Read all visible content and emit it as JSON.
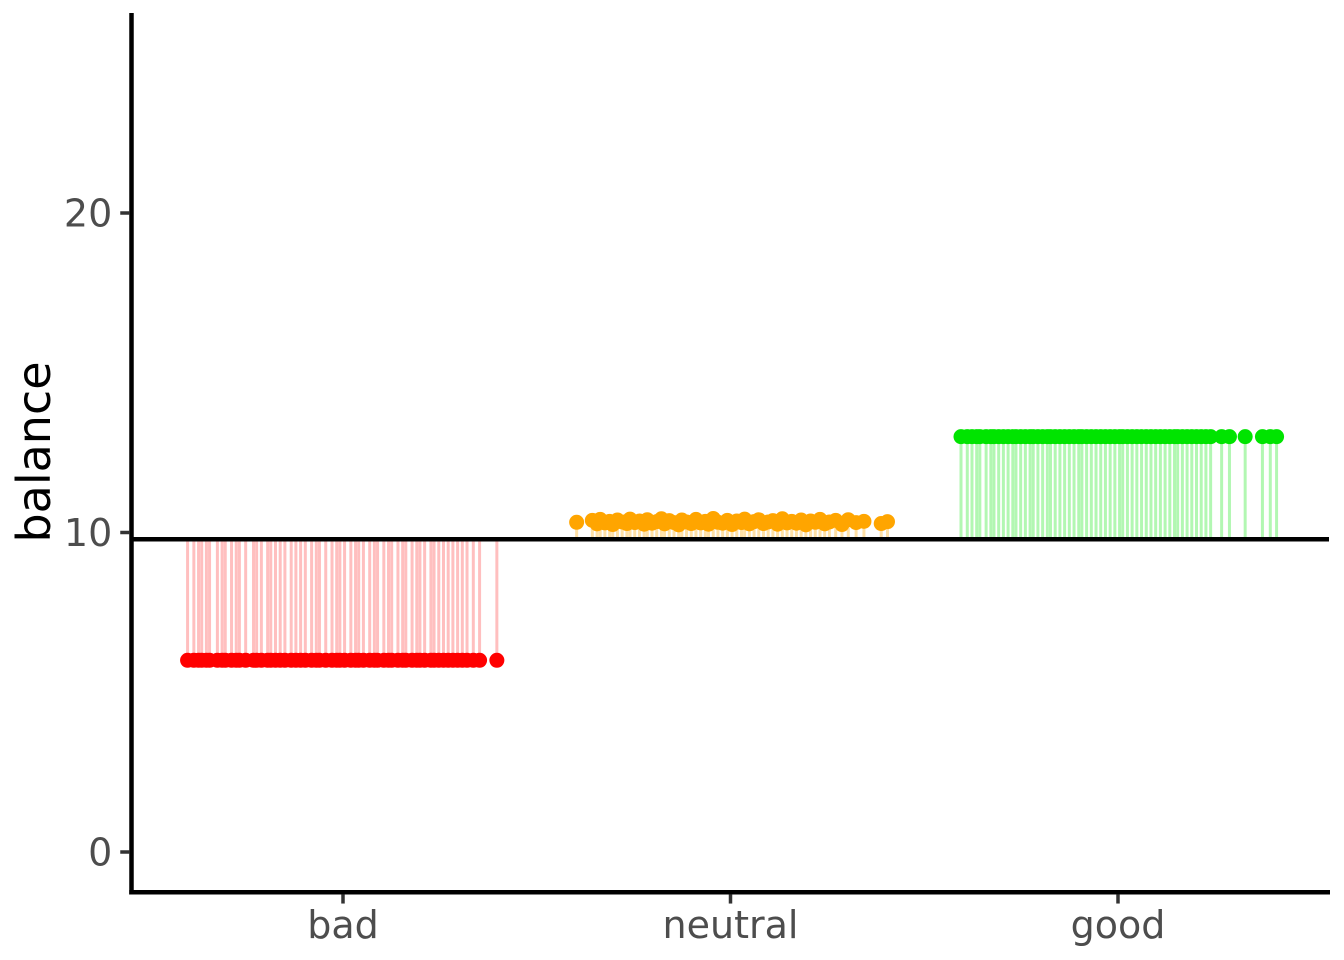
{
  "chart_data": {
    "type": "scatter",
    "title": "",
    "xlabel": "",
    "ylabel": "balance",
    "categories": [
      "bad",
      "neutral",
      "good"
    ],
    "yticks": [
      0,
      10,
      20
    ],
    "ylim": [
      -1.3,
      26.3
    ],
    "baseline": 9.79,
    "grid": false,
    "legend": false,
    "description": "Jittered end-balance points per outcome group, each connected to the starting-balance line (~10) by a translucent vertical segment. bad ends at 6, neutral at ~10.3, good at 13.",
    "axis_colors": {
      "axis_line": "#000000",
      "tick_mark": "#333333",
      "tick_text": "#4d4d4d",
      "title_text": "#000000"
    },
    "series": [
      {
        "name": "bad",
        "point_color": "#ff0000",
        "line_color": "#ff0000",
        "line_alpha": 0.25,
        "end_value": 6,
        "jitter": [
          -0.99,
          -0.95,
          -0.92,
          -0.9,
          -0.87,
          -0.85,
          -0.8,
          -0.77,
          -0.75,
          -0.71,
          -0.68,
          -0.66,
          -0.62,
          -0.57,
          -0.55,
          -0.52,
          -0.48,
          -0.46,
          -0.43,
          -0.4,
          -0.37,
          -0.33,
          -0.3,
          -0.27,
          -0.24,
          -0.2,
          -0.17,
          -0.15,
          -0.11,
          -0.07,
          -0.04,
          -0.02,
          0.01,
          0.05,
          0.08,
          0.1,
          0.13,
          0.17,
          0.2,
          0.22,
          0.26,
          0.29,
          0.31,
          0.35,
          0.38,
          0.4,
          0.44,
          0.47,
          0.49,
          0.52,
          0.56,
          0.58,
          0.61,
          0.64,
          0.67,
          0.7,
          0.73,
          0.76,
          0.79,
          0.83,
          0.87,
          0.98
        ]
      },
      {
        "name": "neutral",
        "point_color": "#ffa500",
        "line_color": "#ffa500",
        "line_alpha": 0.35,
        "end_values": [
          10.32,
          10.38,
          10.27,
          10.41,
          10.3,
          10.35,
          10.25,
          10.39,
          10.33,
          10.28,
          10.42,
          10.31,
          10.36,
          10.26,
          10.4,
          10.29,
          10.34,
          10.43,
          10.27,
          10.37,
          10.31,
          10.24,
          10.39,
          10.33,
          10.28,
          10.41,
          10.3,
          10.35,
          10.26,
          10.44,
          10.32,
          10.29,
          10.38,
          10.25,
          10.36,
          10.31,
          10.42,
          10.27,
          10.34,
          10.4,
          10.28,
          10.33,
          10.37,
          10.26,
          10.43,
          10.3,
          10.35,
          10.29,
          10.39,
          10.24,
          10.36,
          10.32,
          10.41,
          10.27,
          10.33,
          10.38,
          10.25,
          10.4,
          10.31,
          10.35,
          10.28,
          10.34
        ],
        "jitter": [
          -0.98,
          -0.88,
          -0.85,
          -0.83,
          -0.8,
          -0.77,
          -0.75,
          -0.72,
          -0.69,
          -0.66,
          -0.64,
          -0.61,
          -0.58,
          -0.55,
          -0.53,
          -0.5,
          -0.47,
          -0.44,
          -0.42,
          -0.39,
          -0.36,
          -0.33,
          -0.31,
          -0.28,
          -0.25,
          -0.22,
          -0.19,
          -0.16,
          -0.14,
          -0.11,
          -0.08,
          -0.05,
          -0.02,
          0.01,
          0.04,
          0.07,
          0.09,
          0.12,
          0.15,
          0.18,
          0.21,
          0.24,
          0.27,
          0.3,
          0.33,
          0.36,
          0.39,
          0.42,
          0.45,
          0.48,
          0.51,
          0.54,
          0.57,
          0.6,
          0.63,
          0.67,
          0.71,
          0.75,
          0.8,
          0.85,
          0.96,
          1.0
        ]
      },
      {
        "name": "good",
        "point_color": "#00e400",
        "line_color": "#00e400",
        "line_alpha": 0.3,
        "end_value": 13,
        "jitter": [
          -1.0,
          -0.96,
          -0.93,
          -0.9,
          -0.88,
          -0.84,
          -0.81,
          -0.79,
          -0.76,
          -0.73,
          -0.7,
          -0.67,
          -0.65,
          -0.62,
          -0.59,
          -0.56,
          -0.54,
          -0.51,
          -0.48,
          -0.45,
          -0.43,
          -0.4,
          -0.37,
          -0.34,
          -0.31,
          -0.28,
          -0.25,
          -0.23,
          -0.2,
          -0.17,
          -0.14,
          -0.11,
          -0.08,
          -0.05,
          -0.02,
          0.01,
          0.03,
          0.06,
          0.09,
          0.12,
          0.15,
          0.18,
          0.21,
          0.24,
          0.27,
          0.3,
          0.33,
          0.36,
          0.38,
          0.41,
          0.44,
          0.47,
          0.5,
          0.53,
          0.56,
          0.59,
          0.66,
          0.71,
          0.81,
          0.92,
          0.97,
          1.01
        ]
      }
    ]
  }
}
